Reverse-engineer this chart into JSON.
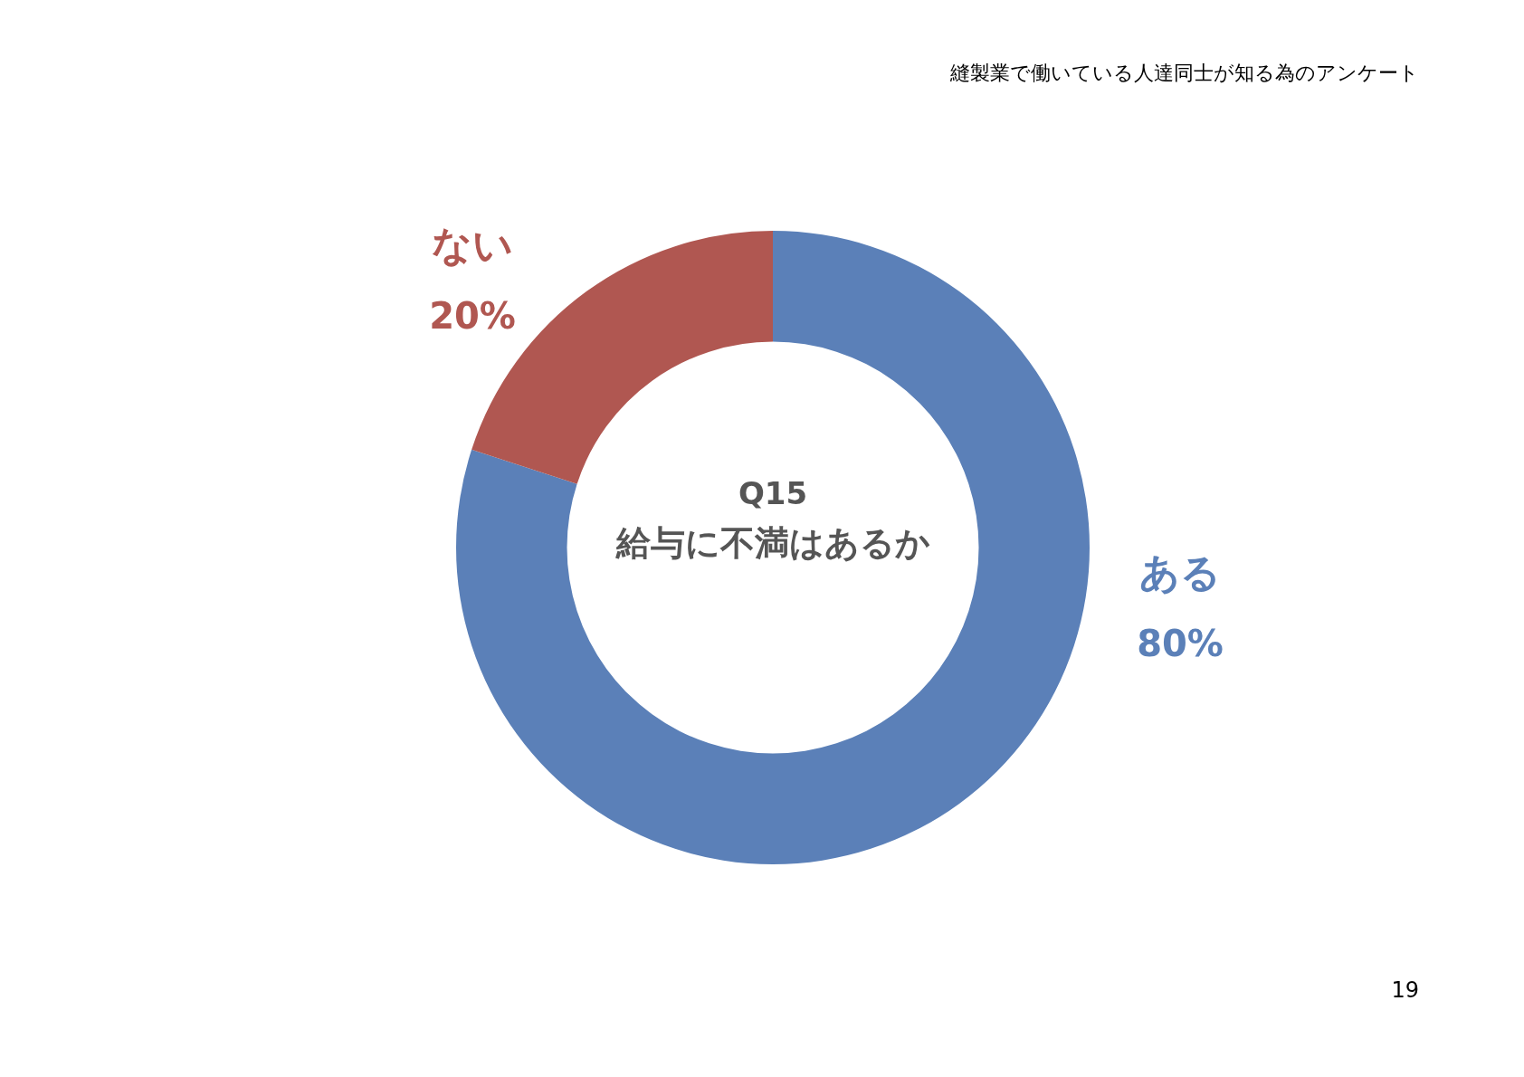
{
  "chart_data": {
    "type": "donut",
    "title": "Q15",
    "subtitle": "給与に不満はあるか",
    "categories": [
      "ある",
      "ない"
    ],
    "values": [
      80,
      20
    ],
    "value_labels": [
      "80%",
      "20%"
    ],
    "colors": [
      "#5b80b8",
      "#b05751"
    ],
    "legend": false,
    "annotations": [
      "縫製業で働いている人達同士が知る為のアンケート",
      "19"
    ]
  }
}
